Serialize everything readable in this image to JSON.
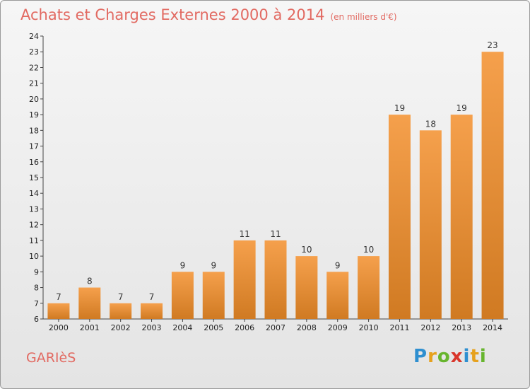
{
  "header": {
    "title": "Achats et Charges Externes 2000 à 2014",
    "unit": "(en milliers d'€)"
  },
  "footer": {
    "commune": "GARIèS",
    "logo_letters": [
      "P",
      "r",
      "o",
      "x",
      "i",
      "t",
      "i"
    ],
    "logo_colors": [
      "#2e8fd0",
      "#e6a11d",
      "#67b52e",
      "#d9362b",
      "#2e8fd0",
      "#e6a11d",
      "#67b52e"
    ]
  },
  "chart_data": {
    "type": "bar",
    "title": "Achats et Charges Externes 2000 à 2014",
    "categories": [
      "2000",
      "2001",
      "2002",
      "2003",
      "2004",
      "2005",
      "2006",
      "2007",
      "2008",
      "2009",
      "2010",
      "2011",
      "2012",
      "2013",
      "2014"
    ],
    "values": [
      7,
      8,
      7,
      7,
      9,
      9,
      11,
      11,
      10,
      9,
      10,
      19,
      18,
      19,
      23
    ],
    "data_labels": [
      "7",
      "8",
      "7",
      "7",
      "9",
      "9",
      "11",
      "11",
      "10",
      "9",
      "10",
      "19",
      "18",
      "19",
      "23"
    ],
    "yticks": [
      "6",
      "7",
      "8",
      "9",
      "10",
      "11",
      "12",
      "13",
      "14",
      "15",
      "16",
      "17",
      "18",
      "19",
      "20",
      "21",
      "22",
      "23",
      "24"
    ],
    "ylim": [
      6,
      24
    ],
    "grid": false,
    "bar_color": "#f5a04c",
    "bar_color_dark": "#d07a22",
    "title_color": "#e26a62"
  }
}
